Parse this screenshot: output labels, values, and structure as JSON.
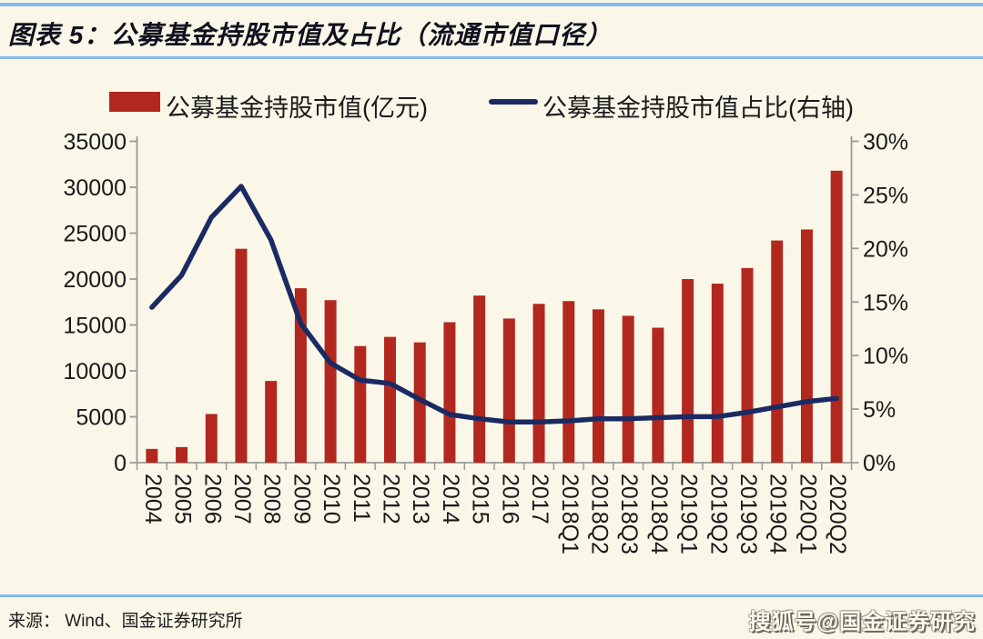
{
  "header": {
    "title": "图表 5：公募基金持股市值及占比（流通市值口径）"
  },
  "legend": {
    "position": "top",
    "items": [
      {
        "label": "公募基金持股市值(亿元)",
        "swatch": "bar",
        "color": "#B3281E"
      },
      {
        "label": "公募基金持股市值占比(右轴)",
        "swatch": "line",
        "color": "#1B2A63"
      }
    ]
  },
  "chart_data": {
    "type": "bar",
    "subtype": "bar-line-combo",
    "title": "公募基金持股市值及占比（流通市值口径）",
    "grid": false,
    "legend_position": "top",
    "categories": [
      "2004",
      "2005",
      "2006",
      "2007",
      "2008",
      "2009",
      "2010",
      "2011",
      "2012",
      "2013",
      "2014",
      "2015",
      "2016",
      "2017",
      "2018Q1",
      "2018Q2",
      "2018Q3",
      "2018Q4",
      "2019Q1",
      "2019Q2",
      "2019Q3",
      "2019Q4",
      "2020Q1",
      "2020Q2"
    ],
    "series": [
      {
        "name": "公募基金持股市值(亿元)",
        "type": "bar",
        "axis": "left",
        "color": "#B3281E",
        "values": [
          1500,
          1700,
          5300,
          23300,
          8900,
          19000,
          17700,
          12700,
          13700,
          13100,
          15300,
          18200,
          15700,
          17300,
          17600,
          16700,
          16000,
          14700,
          20000,
          19500,
          21200,
          24200,
          25400,
          31800
        ]
      },
      {
        "name": "公募基金持股市值占比(右轴)",
        "type": "line",
        "axis": "right",
        "color": "#1B2A63",
        "values": [
          14.5,
          17.5,
          22.9,
          25.8,
          20.8,
          13.0,
          9.3,
          7.7,
          7.4,
          5.9,
          4.5,
          4.1,
          3.8,
          3.8,
          3.9,
          4.1,
          4.1,
          4.2,
          4.3,
          4.3,
          4.7,
          5.2,
          5.7,
          6.0
        ],
        "unit": "%"
      }
    ],
    "left_axis": {
      "min": 0,
      "max": 35000,
      "step": 5000,
      "labels": [
        "0",
        "5000",
        "10000",
        "15000",
        "20000",
        "25000",
        "30000",
        "35000"
      ]
    },
    "right_axis": {
      "min": 0,
      "max": 30,
      "step": 5,
      "labels": [
        "0%",
        "5%",
        "10%",
        "15%",
        "20%",
        "25%",
        "30%"
      ]
    },
    "x_tick_rotation": 90
  },
  "footer": {
    "source": "来源： Wind、国金证券研究所",
    "watermark": "搜狐号@国金证券研究"
  },
  "colors": {
    "background": "#FAF7E8",
    "bar": "#B3281E",
    "line": "#1B2A63",
    "rule": "#85BAEB",
    "axis": "#9A9A9A",
    "tick_text": "#1A1A1A"
  }
}
